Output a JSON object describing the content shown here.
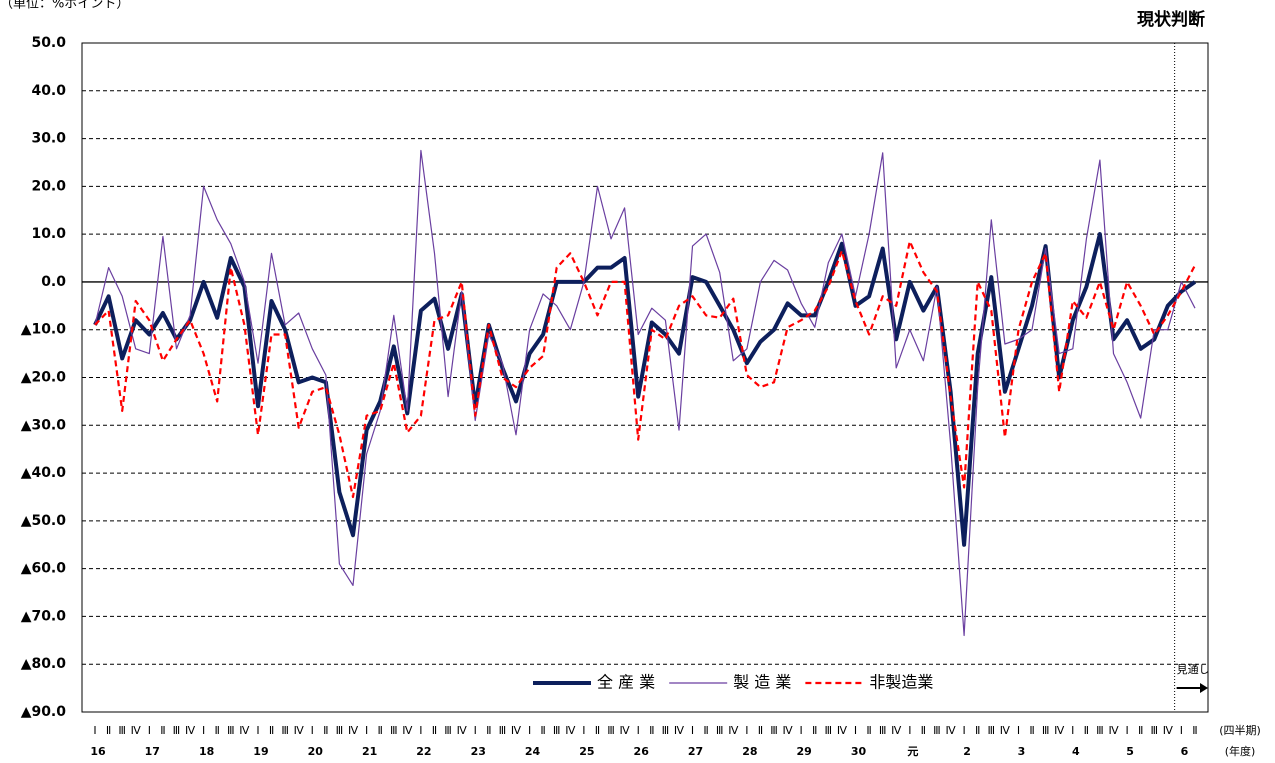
{
  "chart_data": {
    "type": "line",
    "unit_label": "（単位：%ポイント）",
    "title": "現状判断",
    "forecast_label": "見通し",
    "x_axis_label": "(四半期)",
    "year_axis_label": "(年度)",
    "categories": [
      "Ⅰ",
      "Ⅱ",
      "Ⅲ",
      "Ⅳ",
      "Ⅰ",
      "Ⅱ",
      "Ⅲ",
      "Ⅳ",
      "Ⅰ",
      "Ⅱ",
      "Ⅲ",
      "Ⅳ",
      "Ⅰ",
      "Ⅱ",
      "Ⅲ",
      "Ⅳ",
      "Ⅰ",
      "Ⅱ",
      "Ⅲ",
      "Ⅳ",
      "Ⅰ",
      "Ⅱ",
      "Ⅲ",
      "Ⅳ",
      "Ⅰ",
      "Ⅱ",
      "Ⅲ",
      "Ⅳ",
      "Ⅰ",
      "Ⅱ",
      "Ⅲ",
      "Ⅳ",
      "Ⅰ",
      "Ⅱ",
      "Ⅲ",
      "Ⅳ",
      "Ⅰ",
      "Ⅱ",
      "Ⅲ",
      "Ⅳ",
      "Ⅰ",
      "Ⅱ",
      "Ⅲ",
      "Ⅳ",
      "Ⅰ",
      "Ⅱ",
      "Ⅲ",
      "Ⅳ",
      "Ⅰ",
      "Ⅱ",
      "Ⅲ",
      "Ⅳ",
      "Ⅰ",
      "Ⅱ",
      "Ⅲ",
      "Ⅳ",
      "Ⅰ",
      "Ⅱ",
      "Ⅲ",
      "Ⅳ",
      "Ⅰ",
      "Ⅱ",
      "Ⅲ",
      "Ⅳ",
      "Ⅰ",
      "Ⅱ",
      "Ⅲ",
      "Ⅳ",
      "Ⅰ",
      "Ⅱ",
      "Ⅲ",
      "Ⅳ",
      "Ⅰ",
      "Ⅱ",
      "Ⅲ",
      "Ⅳ",
      "Ⅰ",
      "Ⅱ",
      "Ⅲ",
      "Ⅳ",
      "Ⅰ",
      "Ⅱ"
    ],
    "years": [
      "16",
      "17",
      "18",
      "19",
      "20",
      "21",
      "22",
      "23",
      "24",
      "25",
      "26",
      "27",
      "28",
      "29",
      "30",
      "元",
      "2",
      "3",
      "4",
      "5",
      "6"
    ],
    "series": [
      {
        "name": "全 産 業",
        "color": "#0d1f5c",
        "width": 4,
        "dashed": false,
        "values": [
          -9,
          -3,
          -16,
          -8,
          -11,
          -6.5,
          -12,
          -8,
          0,
          -7.5,
          5,
          -1,
          -26,
          -4,
          -10,
          -21,
          -20,
          -21,
          -44,
          -53,
          -31,
          -25,
          -13.5,
          -27.5,
          -6,
          -3.5,
          -14,
          -2.5,
          -26,
          -9,
          -18,
          -25,
          -15,
          -11,
          0,
          0,
          0,
          3,
          3,
          5,
          -24,
          -8.5,
          -11,
          -15,
          1,
          0,
          -5,
          -10,
          -17,
          -12.5,
          -10,
          -4.5,
          -7,
          -7,
          0,
          8,
          -5,
          -3,
          7,
          -12,
          0,
          -6,
          -1,
          -23,
          -55,
          -15,
          1,
          -23,
          -14,
          -5,
          7.5,
          -20,
          -8,
          -1,
          10,
          -12,
          -8,
          -14,
          -12,
          -5,
          -2,
          0
        ]
      },
      {
        "name": "製 造 業",
        "color": "#6a3fa0",
        "width": 1.2,
        "dashed": false,
        "values": [
          -9,
          3,
          -3,
          -14,
          -15,
          9.5,
          -14,
          -7,
          20,
          13,
          8,
          0,
          -17,
          6,
          -9,
          -6.5,
          -14,
          -19.5,
          -59,
          -63.5,
          -36,
          -27,
          -7,
          -27,
          27.5,
          6,
          -24,
          -2,
          -29,
          -11,
          -17,
          -32,
          -10,
          -2.5,
          -5,
          -10,
          0,
          20,
          9,
          15.5,
          -11,
          -5.5,
          -8,
          -31,
          7.5,
          10,
          2,
          -16.5,
          -14,
          0,
          4.5,
          2.5,
          -4.5,
          -9.5,
          4,
          10,
          -3,
          10,
          27,
          -18,
          -10,
          -16.5,
          -1,
          -34,
          -74,
          -22,
          13,
          -13,
          -12,
          -10,
          7,
          -15,
          -14,
          9,
          25.5,
          -15,
          -21,
          -28.5,
          -10,
          -10,
          0,
          -5.5
        ]
      },
      {
        "name": "非製造業",
        "color": "#ff0000",
        "width": 2.2,
        "dashed": true,
        "values": [
          -9,
          -6,
          -27,
          -4,
          -8,
          -16.5,
          -12,
          -8,
          -15,
          -25,
          3,
          -9,
          -32,
          -11,
          -11,
          -30.5,
          -23,
          -22,
          -32,
          -45,
          -28,
          -27,
          -17,
          -31.5,
          -28,
          -8,
          -7,
          0,
          -28,
          -9,
          -20,
          -22,
          -18,
          -15.5,
          3,
          6,
          0,
          -7,
          0,
          0,
          -33,
          -10,
          -12,
          -5,
          -3,
          -7,
          -7.5,
          -3.5,
          -19.5,
          -22,
          -21,
          -9.5,
          -8,
          -6,
          -1,
          6.5,
          -4,
          -11,
          -3,
          -5,
          8.5,
          2,
          -2,
          -24,
          -43,
          0,
          -6,
          -32.5,
          -10,
          0,
          6,
          -23,
          -4,
          -7.5,
          0,
          -10,
          0,
          -5,
          -11,
          -7,
          -2,
          3.5
        ]
      }
    ],
    "ylim": [
      -90,
      50
    ],
    "yticks": [
      {
        "value": -90,
        "label": "▲90.0"
      },
      {
        "value": -80,
        "label": "▲80.0"
      },
      {
        "value": -70,
        "label": "▲70.0"
      },
      {
        "value": -60,
        "label": "▲60.0"
      },
      {
        "value": -50,
        "label": "▲50.0"
      },
      {
        "value": -40,
        "label": "▲40.0"
      },
      {
        "value": -30,
        "label": "▲30.0"
      },
      {
        "value": -20,
        "label": "▲20.0"
      },
      {
        "value": -10,
        "label": "▲10.0"
      },
      {
        "value": 0,
        "label": "0.0"
      },
      {
        "value": 10,
        "label": "10.0"
      },
      {
        "value": 20,
        "label": "20.0"
      },
      {
        "value": 30,
        "label": "30.0"
      },
      {
        "value": 40,
        "label": "40.0"
      },
      {
        "value": 50,
        "label": "50.0"
      }
    ],
    "grid": true
  }
}
